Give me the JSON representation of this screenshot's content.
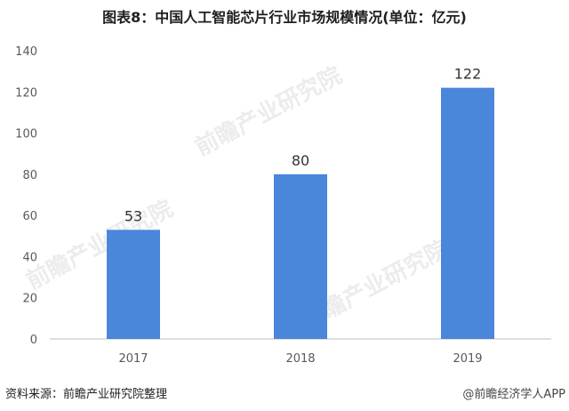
{
  "title": "图表8：中国人工智能芯片行业市场规模情况(单位：亿元)",
  "source": "资料来源：前瞻产业研究院整理",
  "credit": "@前瞻经济学人APP",
  "watermark": "前瞻产业研究院",
  "colors": {
    "bar": "#4a86d9",
    "axis": "#bfbfbf",
    "text": "#595959"
  },
  "chart_data": {
    "type": "bar",
    "categories": [
      "2017",
      "2018",
      "2019"
    ],
    "values": [
      53,
      80,
      122
    ],
    "ylim": [
      0,
      140
    ],
    "yticks": [
      0,
      20,
      40,
      60,
      80,
      100,
      120,
      140
    ],
    "grid": false
  }
}
